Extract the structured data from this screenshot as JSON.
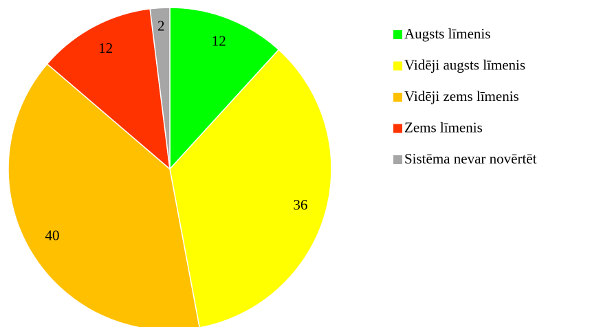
{
  "chart_data": {
    "type": "pie",
    "categories": [
      "Augsts līmenis",
      "Vidēji augsts līmenis",
      "Vidēji zems līmenis",
      "Zems līmenis",
      "Sistēma nevar novērtēt"
    ],
    "values": [
      12,
      36,
      40,
      12,
      2
    ],
    "colors": [
      "#00ff00",
      "#ffff00",
      "#ffc000",
      "#ff3300",
      "#a6a6a6"
    ],
    "legend": "right"
  }
}
